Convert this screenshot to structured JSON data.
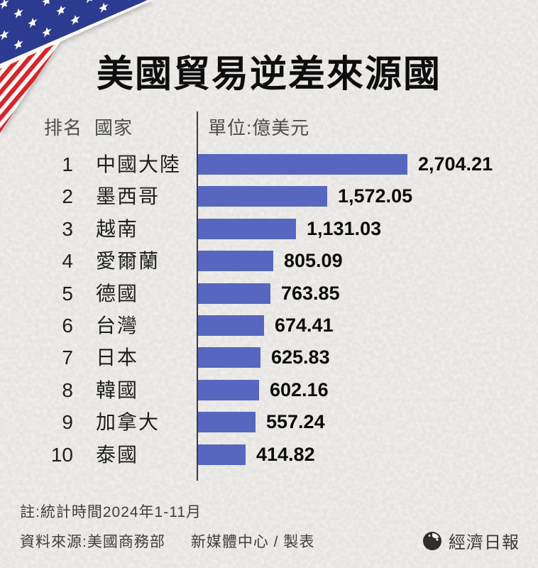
{
  "title": "美國貿易逆差來源國",
  "table_header": {
    "rank": "排名",
    "country": "國家",
    "unit": "單位:億美元"
  },
  "chart_data": {
    "type": "bar",
    "orientation": "horizontal",
    "title": "美國貿易逆差來源國",
    "unit": "億美元",
    "categories": [
      "中國大陸",
      "墨西哥",
      "越南",
      "愛爾蘭",
      "德國",
      "台灣",
      "日本",
      "韓國",
      "加拿大",
      "泰國"
    ],
    "ranks": [
      "1",
      "2",
      "3",
      "4",
      "5",
      "6",
      "7",
      "8",
      "9",
      "10"
    ],
    "values": [
      2704.21,
      1572.05,
      1131.03,
      805.09,
      763.85,
      674.41,
      625.83,
      602.16,
      557.24,
      414.82
    ],
    "value_labels": [
      "2,704.21",
      "1,572.05",
      "1,131.03",
      "805.09",
      "763.85",
      "674.41",
      "625.83",
      "602.16",
      "557.24",
      "414.82"
    ],
    "bar_color": "#5767bf",
    "legend": "none",
    "grid": "off"
  },
  "footer": {
    "note": "註:統計時間2024年1-11月",
    "source": "資料來源:美國商務部",
    "credit": "新媒體中心 / 製表",
    "brand": "經濟日報"
  },
  "colors": {
    "background": "#e8e6e3",
    "bar": "#5767bf",
    "flag_blue": "#2c3a8f",
    "flag_red": "#d8232a",
    "axis_line": "#3d3d3d",
    "text_dark": "#111111",
    "text_gray": "#4d4d4d"
  }
}
